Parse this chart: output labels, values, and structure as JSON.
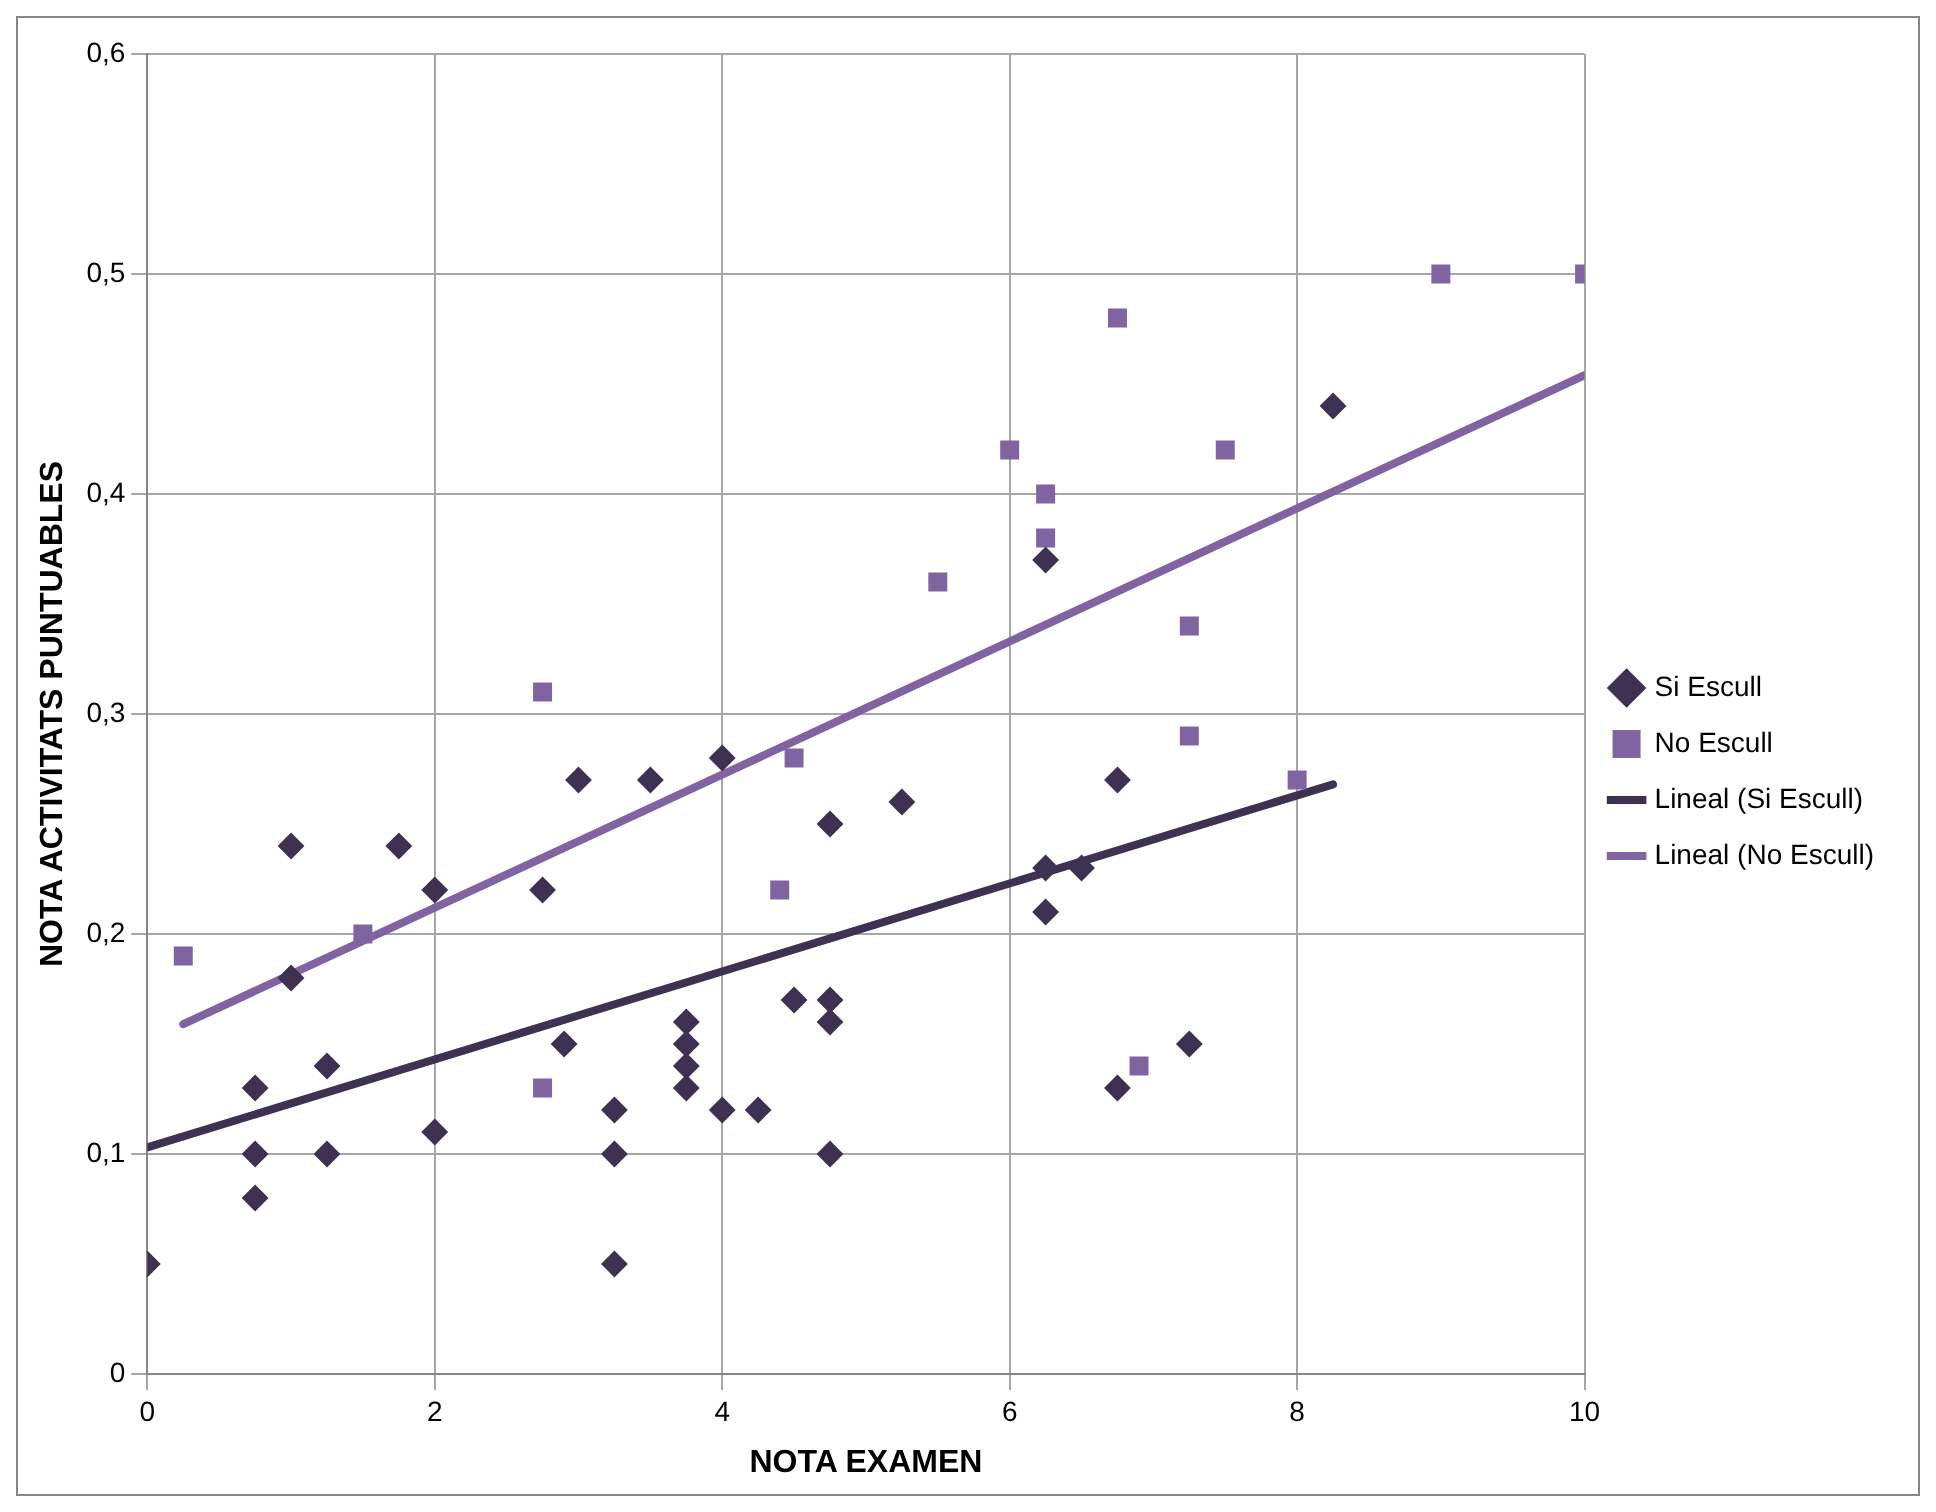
{
  "chart_data": {
    "type": "scatter",
    "xlabel": "NOTA EXAMEN",
    "ylabel": "NOTA ACTIVITATS PUNTUABLES",
    "xlim": [
      0,
      10
    ],
    "xticks": [
      0,
      2,
      4,
      6,
      8,
      10
    ],
    "ylim": [
      0,
      0.6
    ],
    "yticks": [
      {
        "value": 0,
        "label": "0"
      },
      {
        "value": 0.1,
        "label": "0,1"
      },
      {
        "value": 0.2,
        "label": "0,2"
      },
      {
        "value": 0.3,
        "label": "0,3"
      },
      {
        "value": 0.4,
        "label": "0,4"
      },
      {
        "value": 0.5,
        "label": "0,5"
      },
      {
        "value": 0.6,
        "label": "0,6"
      }
    ],
    "grid": true,
    "legend": "right",
    "series": [
      {
        "name": "Si Escull",
        "type": "scatter",
        "marker": "diamond",
        "color": "#3f3151",
        "x": [
          0,
          0.75,
          0.75,
          0.75,
          1,
          1,
          1.25,
          1.25,
          1.75,
          2,
          2,
          2.75,
          2.9,
          3,
          3.25,
          3.25,
          3.25,
          3.5,
          3.75,
          3.75,
          3.75,
          3.75,
          4,
          4,
          4.25,
          4.5,
          4.75,
          4.75,
          4.75,
          4.75,
          5.25,
          6.25,
          6.25,
          6.25,
          6.5,
          6.75,
          6.75,
          7.25,
          8.25
        ],
        "values": [
          0.05,
          0.13,
          0.1,
          0.08,
          0.24,
          0.18,
          0.14,
          0.1,
          0.24,
          0.22,
          0.11,
          0.22,
          0.15,
          0.27,
          0.12,
          0.1,
          0.05,
          0.27,
          0.16,
          0.15,
          0.14,
          0.13,
          0.28,
          0.12,
          0.12,
          0.17,
          0.25,
          0.17,
          0.16,
          0.1,
          0.26,
          0.37,
          0.23,
          0.21,
          0.23,
          0.27,
          0.13,
          0.15,
          0.44
        ]
      },
      {
        "name": "No Escull",
        "type": "scatter",
        "marker": "square",
        "color": "#8064a2",
        "x": [
          0.25,
          1.5,
          2.75,
          2.75,
          4.4,
          4.5,
          5.5,
          6,
          6.25,
          6.25,
          6.75,
          6.9,
          7.25,
          7.25,
          7.5,
          8,
          9,
          10
        ],
        "values": [
          0.19,
          0.2,
          0.31,
          0.13,
          0.22,
          0.28,
          0.36,
          0.42,
          0.4,
          0.38,
          0.48,
          0.14,
          0.34,
          0.29,
          0.42,
          0.27,
          0.5,
          0.5
        ]
      },
      {
        "name": "Lineal (Si Escull)",
        "type": "line",
        "marker": "none",
        "line_style": "solid",
        "color": "#3f3151",
        "x": [
          0,
          8.25
        ],
        "values": [
          0.103,
          0.268
        ]
      },
      {
        "name": "Lineal (No Escull)",
        "type": "line",
        "marker": "none",
        "line_style": "solid",
        "color": "#8064a2",
        "x": [
          0.25,
          10
        ],
        "values": [
          0.159,
          0.454
        ]
      }
    ]
  }
}
